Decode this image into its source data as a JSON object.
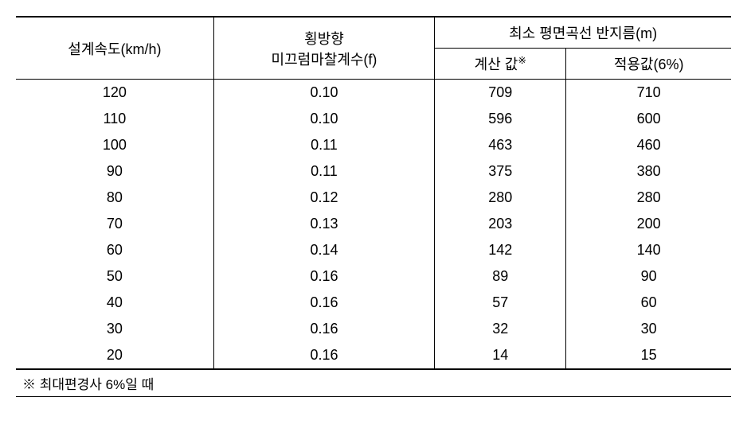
{
  "table": {
    "headers": {
      "speed": "설계속도(km/h)",
      "friction_line1": "횡방향",
      "friction_line2": "미끄럼마찰계수(f)",
      "radius_merged": "최소 평면곡선 반지름(m)",
      "calc": "계산 값",
      "calc_sup": "※",
      "applied": "적용값(6%)"
    },
    "rows": [
      {
        "speed": "120",
        "friction": "0.10",
        "calc": "709",
        "applied": "710"
      },
      {
        "speed": "110",
        "friction": "0.10",
        "calc": "596",
        "applied": "600"
      },
      {
        "speed": "100",
        "friction": "0.11",
        "calc": "463",
        "applied": "460"
      },
      {
        "speed": "90",
        "friction": "0.11",
        "calc": "375",
        "applied": "380"
      },
      {
        "speed": "80",
        "friction": "0.12",
        "calc": "280",
        "applied": "280"
      },
      {
        "speed": "70",
        "friction": "0.13",
        "calc": "203",
        "applied": "200"
      },
      {
        "speed": "60",
        "friction": "0.14",
        "calc": "142",
        "applied": "140"
      },
      {
        "speed": "50",
        "friction": "0.16",
        "calc": "89",
        "applied": "90"
      },
      {
        "speed": "40",
        "friction": "0.16",
        "calc": "57",
        "applied": "60"
      },
      {
        "speed": "30",
        "friction": "0.16",
        "calc": "32",
        "applied": "30"
      },
      {
        "speed": "20",
        "friction": "0.16",
        "calc": "14",
        "applied": "15"
      }
    ],
    "footnote": "※ 최대편경사 6%일 때"
  },
  "styling": {
    "border_color": "#000000",
    "background_color": "#ffffff",
    "text_color": "#000000",
    "font_size_body": 18,
    "font_size_footnote": 17,
    "column_widths": [
      "25%",
      "25%",
      "25%",
      "25%"
    ]
  }
}
